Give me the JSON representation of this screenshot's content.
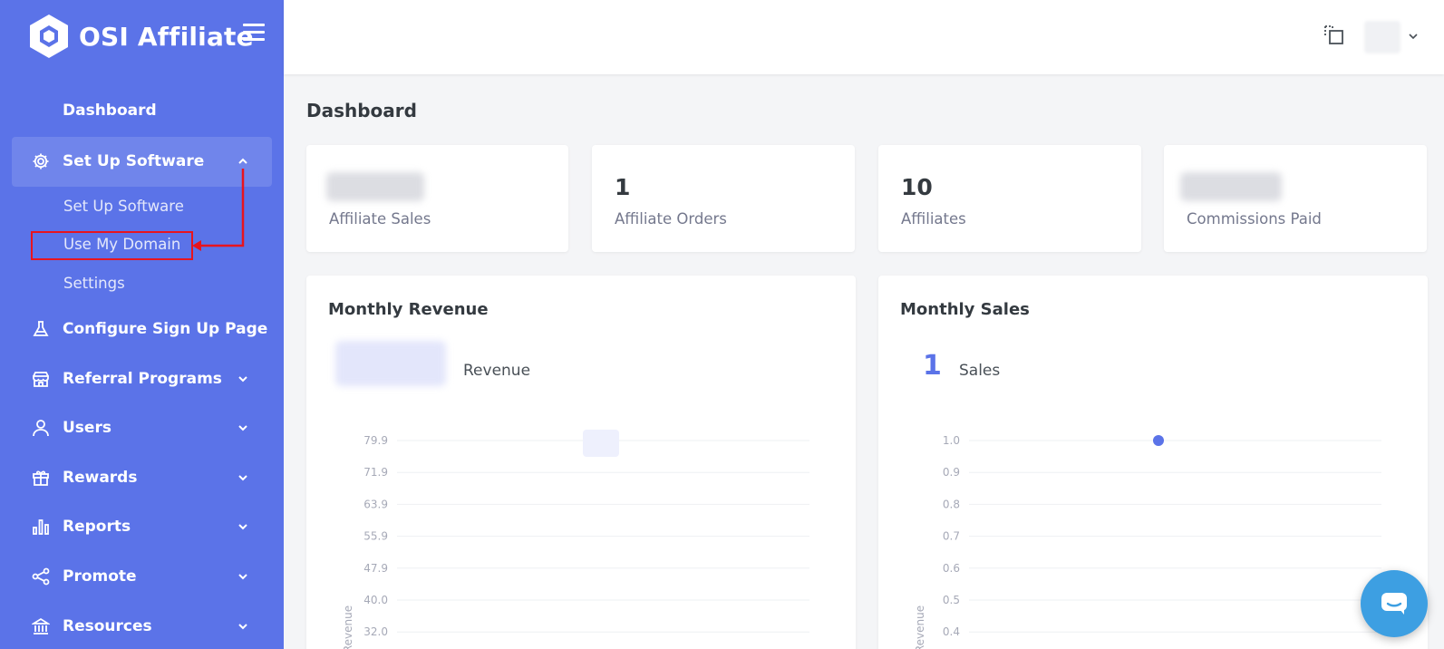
{
  "brand": {
    "name": "OSI Affiliate"
  },
  "sidebar": {
    "dashboard": "Dashboard",
    "setup": {
      "label": "Set Up Software",
      "subitems": [
        "Set Up Software",
        "Use My Domain",
        "Settings"
      ]
    },
    "items": [
      {
        "label": "Configure Sign Up Page",
        "icon": "flask-icon"
      },
      {
        "label": "Referral Programs",
        "icon": "store-icon"
      },
      {
        "label": "Users",
        "icon": "user-icon"
      },
      {
        "label": "Rewards",
        "icon": "gift-icon"
      },
      {
        "label": "Reports",
        "icon": "bar-chart-icon"
      },
      {
        "label": "Promote",
        "icon": "share-icon"
      },
      {
        "label": "Resources",
        "icon": "bank-icon"
      }
    ]
  },
  "page": {
    "title": "Dashboard"
  },
  "stats": [
    {
      "value": "",
      "label": "Affiliate Sales",
      "blurred": true
    },
    {
      "value": "1",
      "label": "Affiliate Orders",
      "blurred": false
    },
    {
      "value": "10",
      "label": "Affiliates",
      "blurred": false
    },
    {
      "value": "",
      "label": "Commissions Paid",
      "blurred": true
    }
  ],
  "revenue_panel": {
    "title": "Monthly Revenue",
    "value_label": "Revenue"
  },
  "sales_panel": {
    "title": "Monthly Sales",
    "value": "1",
    "value_label": "Sales"
  },
  "colors": {
    "sidebar": "#5b73e8",
    "accent": "#5b73e8",
    "highlight": "#e8141e",
    "chat": "#3d9fe2"
  },
  "chart_data": [
    {
      "type": "line",
      "ylabel": "Revenue",
      "yticks": [
        "79.9",
        "71.9",
        "63.9",
        "55.9",
        "47.9",
        "40.0",
        "32.0"
      ],
      "series": []
    },
    {
      "type": "scatter",
      "ylabel": "Revenue",
      "yticks": [
        "1.0",
        "0.9",
        "0.8",
        "0.7",
        "0.6",
        "0.5",
        "0.4"
      ],
      "series": [
        {
          "values": [
            1.0
          ]
        }
      ]
    }
  ]
}
